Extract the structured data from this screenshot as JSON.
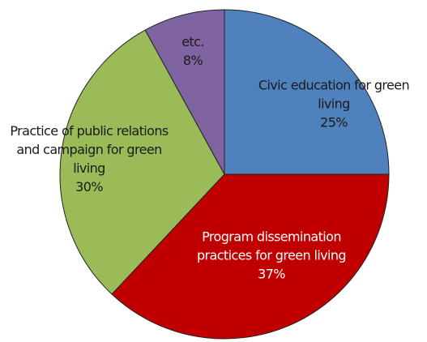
{
  "chart_data": {
    "type": "pie",
    "categories": [
      "Civic education for green living",
      "Program dissemination practices for green living",
      "Practice of public relations and campaign for green living",
      "etc."
    ],
    "values": [
      25,
      37,
      30,
      8
    ],
    "value_labels": [
      "25%",
      "37%",
      "30%",
      "8%"
    ],
    "colors": [
      "#4f81bd",
      "#c00000",
      "#9bbb59",
      "#8064a2"
    ]
  }
}
